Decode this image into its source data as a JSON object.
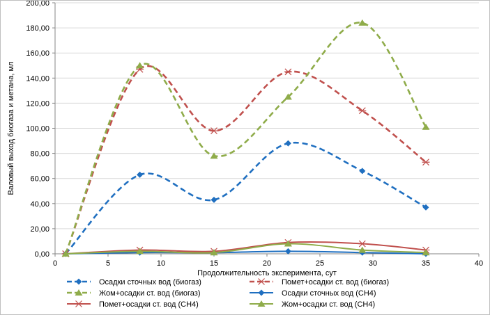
{
  "chart_data": {
    "type": "line",
    "title": "",
    "xlabel": "Продолжительность эксперимента, сут",
    "ylabel": "Валовый выход биогаза и метана, мл",
    "xlim": [
      0,
      40
    ],
    "ylim": [
      0,
      200
    ],
    "x_ticks": [
      "0",
      "5",
      "10",
      "15",
      "20",
      "25",
      "30",
      "35",
      "40"
    ],
    "y_ticks": [
      "0,00",
      "20,00",
      "40,00",
      "60,00",
      "80,00",
      "100,00",
      "120,00",
      "140,00",
      "160,00",
      "180,00",
      "200,00"
    ],
    "grid": "horizontal",
    "legend_position": "bottom",
    "x": [
      1,
      8,
      15,
      22,
      29,
      35
    ],
    "series": [
      {
        "name": "Осадки сточных вод (биогаз)",
        "values": [
          0,
          63,
          43,
          88,
          66,
          37
        ],
        "color": "#1f6fc0",
        "marker": "diamond",
        "dashed": true
      },
      {
        "name": "Помет+осадки ст. вод (биогаз)",
        "values": [
          0,
          147,
          98,
          145,
          114,
          73
        ],
        "color": "#c0504d",
        "marker": "asterisk",
        "dashed": true
      },
      {
        "name": "Жом+осадки ст. вод (биогаз)",
        "values": [
          0,
          150,
          78,
          125,
          184,
          101
        ],
        "color": "#8fac4a",
        "marker": "triangle",
        "dashed": true
      },
      {
        "name": "Осадки сточных вод (СН4)",
        "values": [
          0,
          1,
          1,
          2,
          1,
          0
        ],
        "color": "#1f6fc0",
        "marker": "diamond",
        "dashed": false
      },
      {
        "name": "Помет+осадки ст. вод (СН4)",
        "values": [
          0,
          3,
          2,
          9,
          8,
          3
        ],
        "color": "#c0504d",
        "marker": "asterisk",
        "dashed": false
      },
      {
        "name": "Жом+осадки ст. вод (СН4)",
        "values": [
          0,
          2,
          1,
          8,
          3,
          1
        ],
        "color": "#8fac4a",
        "marker": "triangle",
        "dashed": false
      }
    ]
  }
}
